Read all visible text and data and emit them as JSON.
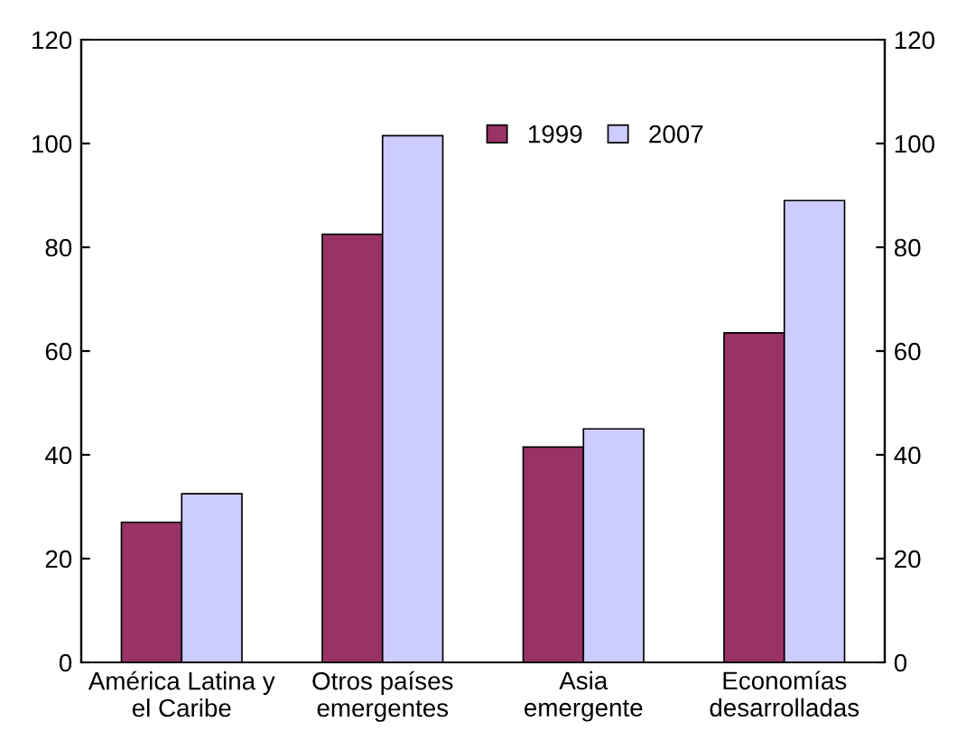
{
  "chart_data": {
    "type": "bar",
    "categories": [
      "América Latina y\nel Caribe",
      "Otros países\nemergentes",
      "Asia\nemergente",
      "Economías\ndesarrolladas"
    ],
    "series": [
      {
        "name": "1999",
        "color": "#993366",
        "values": [
          27,
          82.5,
          41.5,
          63.5
        ]
      },
      {
        "name": "2007",
        "color": "#ccccff",
        "values": [
          32.5,
          101.5,
          45,
          89
        ]
      }
    ],
    "ylim": [
      0,
      120
    ],
    "yticks": [
      0,
      20,
      40,
      60,
      80,
      100,
      120
    ],
    "y2lim": [
      0,
      120
    ],
    "y2ticks": [
      0,
      20,
      40,
      60,
      80,
      100,
      120
    ],
    "grid": false,
    "legend": "top"
  }
}
